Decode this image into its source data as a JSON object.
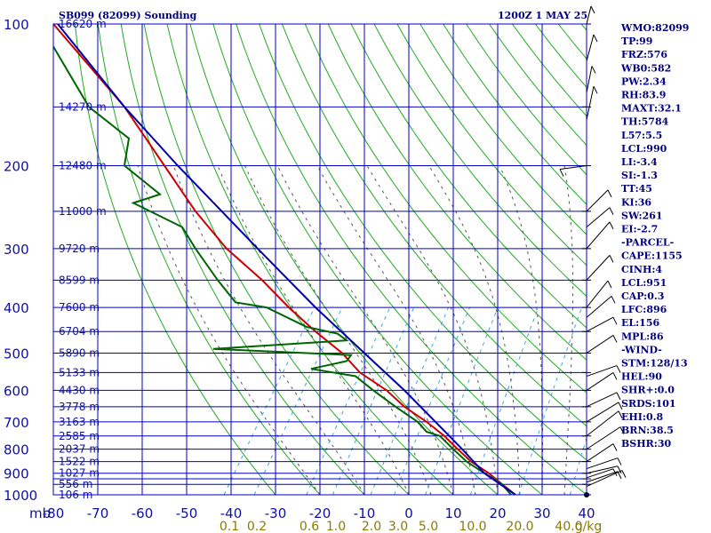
{
  "header": {
    "station": "SB099 (82099) Sounding",
    "time": "1200Z  1 MAY 25"
  },
  "indices": [
    "WMO:82099",
    "TP:99",
    "FRZ:576",
    "WB0:582",
    "PW:2.34",
    "RH:83.9",
    "MAXT:32.1",
    "TH:5784",
    "L57:5.5",
    "LCL:990",
    "LI:-3.4",
    "SI:-1.3",
    "TT:45",
    "KI:36",
    "SW:261",
    "EI:-2.7",
    "-PARCEL-",
    "CAPE:1155",
    "CINH:4",
    "LCL:951",
    "CAP:0.3",
    "LFC:896",
    "EL:156",
    "MPL:86",
    "-WIND-",
    "STM:128/13",
    "HEL:90",
    "SHR+:0.0",
    "SRDS:101",
    "EHI:0.8",
    "BRN:38.5",
    "BSHR:30"
  ],
  "axes": {
    "x_unit": "mb",
    "x_ticks": [
      -80,
      -70,
      -60,
      -50,
      -40,
      -30,
      -20,
      -10,
      0,
      10,
      20,
      30,
      40
    ],
    "mixing_unit": "g/kg",
    "mixing_ratios": [
      "0.1",
      "0.2",
      "0.6",
      "1.0",
      "2.0",
      "3.0",
      "5.0",
      "10.0",
      "20.0",
      "40.0"
    ]
  },
  "chart_data": {
    "type": "line",
    "diagram": "skew-T log-P",
    "x_range": [
      -80,
      40
    ],
    "pressure_range": [
      1000,
      100
    ],
    "pressure_ticks": [
      100,
      200,
      300,
      400,
      500,
      600,
      700,
      800,
      900,
      1000
    ],
    "pressure_lines": [
      100,
      150,
      200,
      250,
      300,
      350,
      400,
      450,
      500,
      550,
      600,
      650,
      700,
      750,
      800,
      850,
      900,
      925,
      950,
      1000
    ],
    "height_labels": [
      {
        "p": 100,
        "text": "16620 m"
      },
      {
        "p": 150,
        "text": "14270 m"
      },
      {
        "p": 200,
        "text": "12480 m"
      },
      {
        "p": 250,
        "text": "11000 m"
      },
      {
        "p": 300,
        "text": "9720 m"
      },
      {
        "p": 350,
        "text": "8599 m"
      },
      {
        "p": 400,
        "text": "7600 m"
      },
      {
        "p": 450,
        "text": "6704 m"
      },
      {
        "p": 500,
        "text": "5890 m"
      },
      {
        "p": 550,
        "text": "5133 m"
      },
      {
        "p": 600,
        "text": "4430 m"
      },
      {
        "p": 650,
        "text": "3778 m"
      },
      {
        "p": 700,
        "text": "3163 m"
      },
      {
        "p": 750,
        "text": "2585 m"
      },
      {
        "p": 800,
        "text": "2037 m"
      },
      {
        "p": 850,
        "text": "1522 m"
      },
      {
        "p": 900,
        "text": "1027 m"
      },
      {
        "p": 950,
        "text": "556 m"
      },
      {
        "p": 1000,
        "text": "106 m"
      }
    ],
    "series": [
      {
        "color": "#cc0000",
        "points": [
          [
            1000,
            24
          ],
          [
            950,
            21
          ],
          [
            900,
            18
          ],
          [
            850,
            14
          ],
          [
            800,
            11
          ],
          [
            750,
            8
          ],
          [
            700,
            4
          ],
          [
            650,
            -1
          ],
          [
            600,
            -5
          ],
          [
            550,
            -11
          ],
          [
            500,
            -15
          ],
          [
            450,
            -21
          ],
          [
            400,
            -27
          ],
          [
            350,
            -33
          ],
          [
            300,
            -41
          ],
          [
            250,
            -48
          ],
          [
            200,
            -55
          ],
          [
            150,
            -64
          ],
          [
            100,
            -80
          ]
        ]
      },
      {
        "color": "#006400",
        "points": [
          [
            1000,
            23
          ],
          [
            950,
            21
          ],
          [
            900,
            17
          ],
          [
            850,
            13
          ],
          [
            800,
            10
          ],
          [
            750,
            7
          ],
          [
            735,
            4
          ],
          [
            700,
            2
          ],
          [
            650,
            -3
          ],
          [
            600,
            -8
          ],
          [
            560,
            -12
          ],
          [
            540,
            -22
          ],
          [
            520,
            -14
          ],
          [
            505,
            -13
          ],
          [
            490,
            -44
          ],
          [
            470,
            -14
          ],
          [
            455,
            -16
          ],
          [
            440,
            -23
          ],
          [
            400,
            -32
          ],
          [
            390,
            -39
          ],
          [
            350,
            -43
          ],
          [
            300,
            -48
          ],
          [
            270,
            -51
          ],
          [
            240,
            -62
          ],
          [
            230,
            -56
          ],
          [
            200,
            -64
          ],
          [
            175,
            -63
          ],
          [
            150,
            -72
          ],
          [
            100,
            -83
          ]
        ]
      },
      {
        "color": "#0000aa",
        "points": [
          [
            1000,
            24
          ],
          [
            900,
            17
          ],
          [
            800,
            12
          ],
          [
            700,
            6
          ],
          [
            600,
            -1
          ],
          [
            500,
            -10
          ],
          [
            400,
            -21
          ],
          [
            300,
            -34
          ],
          [
            200,
            -52
          ],
          [
            150,
            -64
          ],
          [
            100,
            -79
          ]
        ]
      }
    ]
  }
}
